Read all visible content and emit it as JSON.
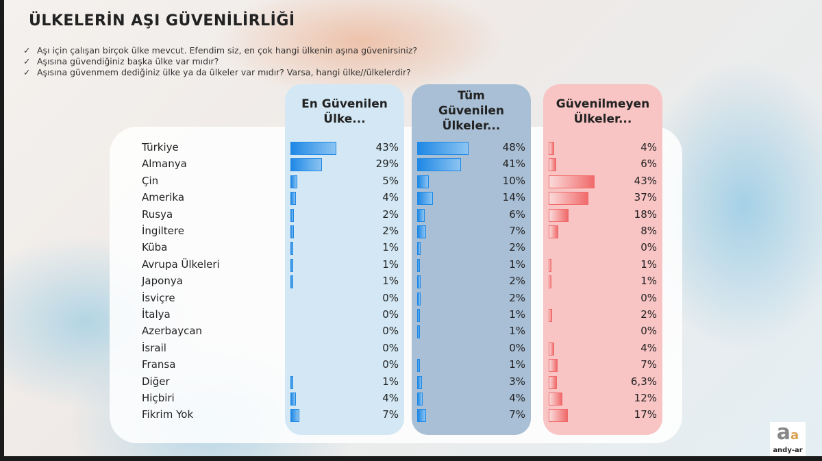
{
  "title": "ÜLKELERİN AŞI GÜVENİLİRLİĞİ",
  "questions": [
    "Aşı için çalışan birçok ülke mevcut. Efendim siz, en çok hangi ülkenin aşına güvenirsiniz?",
    "Aşısına güvendiğiniz başka ülke var mıdır?",
    "Aşısına güvenmem dediğiniz ülke ya da ülkeler var mıdır? Varsa, hangi ülke//ülkelerdir?"
  ],
  "check_icon": "✓",
  "logo_text": "andy-ar",
  "chart_data": {
    "type": "bar",
    "orientation": "horizontal",
    "categories": [
      "Türkiye",
      "Almanya",
      "Çin",
      "Amerika",
      "Rusya",
      "İngiltere",
      "Küba",
      "Avrupa Ülkeleri",
      "Japonya",
      "İsviçre",
      "İtalya",
      "Azerbaycan",
      "İsrail",
      "Fransa",
      "Diğer",
      "Hiçbiri",
      "Fikrim Yok"
    ],
    "series": [
      {
        "name": "En Güvenilen Ülke...",
        "color": "#1e88e5",
        "bg": "#d3e8f4",
        "values": [
          43,
          29,
          5,
          4,
          2,
          2,
          1,
          1,
          1,
          0,
          0,
          0,
          0,
          0,
          1,
          4,
          7
        ],
        "labels": [
          "43%",
          "29%",
          "5%",
          "4%",
          "2%",
          "2%",
          "1%",
          "1%",
          "1%",
          "0%",
          "0%",
          "0%",
          "0%",
          "0%",
          "1%",
          "4%",
          "7%"
        ]
      },
      {
        "name": "Tüm Güvenilen Ülkeler...",
        "color": "#1e88e5",
        "bg": "#a9bfd5",
        "values": [
          48,
          41,
          10,
          14,
          6,
          7,
          2,
          1,
          2,
          2,
          1,
          1,
          0,
          1,
          3,
          4,
          7
        ],
        "labels": [
          "48%",
          "41%",
          "10%",
          "14%",
          "6%",
          "7%",
          "2%",
          "1%",
          "2%",
          "2%",
          "1%",
          "1%",
          "0%",
          "1%",
          "3%",
          "4%",
          "7%"
        ]
      },
      {
        "name": "Güvenilmeyen Ülkeler...",
        "color": "#f06a6a",
        "bg": "#f8c4c4",
        "values": [
          4,
          6,
          43,
          37,
          18,
          8,
          0,
          1,
          1,
          0,
          2,
          0,
          4,
          7,
          6.3,
          12,
          17
        ],
        "labels": [
          "4%",
          "6%",
          "43%",
          "37%",
          "18%",
          "8%",
          "0%",
          "1%",
          "1%",
          "0%",
          "2%",
          "0%",
          "4%",
          "7%",
          "6,3%",
          "12%",
          "17%"
        ]
      }
    ],
    "headers": [
      [
        "En Güvenilen",
        "Ülke..."
      ],
      [
        "Tüm",
        "Güvenilen",
        "Ülkeler..."
      ],
      [
        "Güvenilmeyen",
        "Ülkeler..."
      ]
    ]
  }
}
